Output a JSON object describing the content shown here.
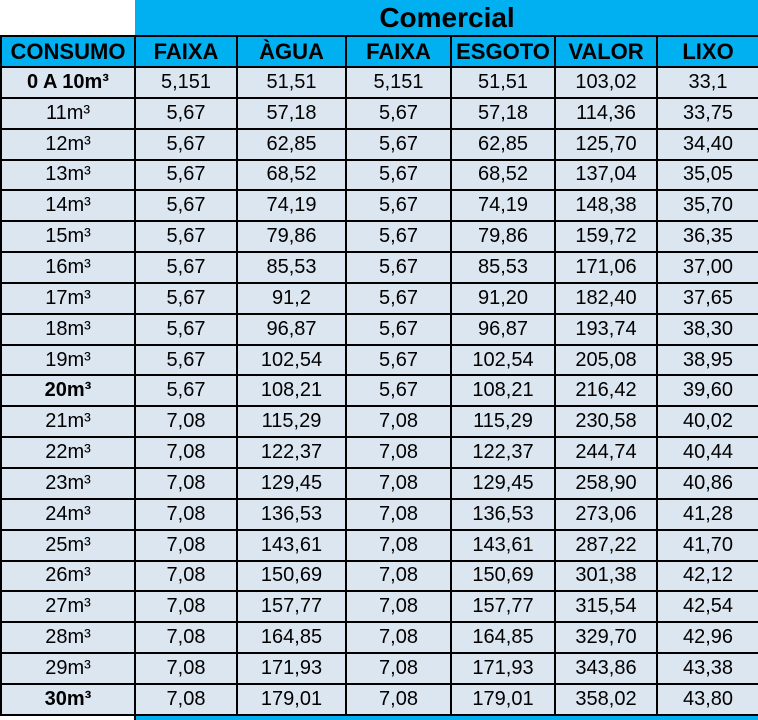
{
  "title": "Comercial",
  "columns": [
    "CONSUMO",
    "FAIXA",
    "ÀGUA",
    "FAIXA",
    "ESGOTO",
    "VALOR",
    "LIXO"
  ],
  "colors": {
    "section_header": "#00B0F0",
    "row_background": "#DCE6F1",
    "border": "#000000",
    "text": "#000000"
  },
  "rows": [
    {
      "consumo": "0 A 10m³",
      "bold": true,
      "faixa1": "5,151",
      "agua": "51,51",
      "faixa2": "5,151",
      "esgoto": "51,51",
      "valor": "103,02",
      "lixo": "33,1"
    },
    {
      "consumo": "11m³",
      "bold": false,
      "faixa1": "5,67",
      "agua": "57,18",
      "faixa2": "5,67",
      "esgoto": "57,18",
      "valor": "114,36",
      "lixo": "33,75"
    },
    {
      "consumo": "12m³",
      "bold": false,
      "faixa1": "5,67",
      "agua": "62,85",
      "faixa2": "5,67",
      "esgoto": "62,85",
      "valor": "125,70",
      "lixo": "34,40"
    },
    {
      "consumo": "13m³",
      "bold": false,
      "faixa1": "5,67",
      "agua": "68,52",
      "faixa2": "5,67",
      "esgoto": "68,52",
      "valor": "137,04",
      "lixo": "35,05"
    },
    {
      "consumo": "14m³",
      "bold": false,
      "faixa1": "5,67",
      "agua": "74,19",
      "faixa2": "5,67",
      "esgoto": "74,19",
      "valor": "148,38",
      "lixo": "35,70"
    },
    {
      "consumo": "15m³",
      "bold": false,
      "faixa1": "5,67",
      "agua": "79,86",
      "faixa2": "5,67",
      "esgoto": "79,86",
      "valor": "159,72",
      "lixo": "36,35"
    },
    {
      "consumo": "16m³",
      "bold": false,
      "faixa1": "5,67",
      "agua": "85,53",
      "faixa2": "5,67",
      "esgoto": "85,53",
      "valor": "171,06",
      "lixo": "37,00"
    },
    {
      "consumo": "17m³",
      "bold": false,
      "faixa1": "5,67",
      "agua": "91,2",
      "faixa2": "5,67",
      "esgoto": "91,20",
      "valor": "182,40",
      "lixo": "37,65"
    },
    {
      "consumo": "18m³",
      "bold": false,
      "faixa1": "5,67",
      "agua": "96,87",
      "faixa2": "5,67",
      "esgoto": "96,87",
      "valor": "193,74",
      "lixo": "38,30"
    },
    {
      "consumo": "19m³",
      "bold": false,
      "faixa1": "5,67",
      "agua": "102,54",
      "faixa2": "5,67",
      "esgoto": "102,54",
      "valor": "205,08",
      "lixo": "38,95"
    },
    {
      "consumo": "20m³",
      "bold": true,
      "faixa1": "5,67",
      "agua": "108,21",
      "faixa2": "5,67",
      "esgoto": "108,21",
      "valor": "216,42",
      "lixo": "39,60"
    },
    {
      "consumo": "21m³",
      "bold": false,
      "faixa1": "7,08",
      "agua": "115,29",
      "faixa2": "7,08",
      "esgoto": "115,29",
      "valor": "230,58",
      "lixo": "40,02"
    },
    {
      "consumo": "22m³",
      "bold": false,
      "faixa1": "7,08",
      "agua": "122,37",
      "faixa2": "7,08",
      "esgoto": "122,37",
      "valor": "244,74",
      "lixo": "40,44"
    },
    {
      "consumo": "23m³",
      "bold": false,
      "faixa1": "7,08",
      "agua": "129,45",
      "faixa2": "7,08",
      "esgoto": "129,45",
      "valor": "258,90",
      "lixo": "40,86"
    },
    {
      "consumo": "24m³",
      "bold": false,
      "faixa1": "7,08",
      "agua": "136,53",
      "faixa2": "7,08",
      "esgoto": "136,53",
      "valor": "273,06",
      "lixo": "41,28"
    },
    {
      "consumo": "25m³",
      "bold": false,
      "faixa1": "7,08",
      "agua": "143,61",
      "faixa2": "7,08",
      "esgoto": "143,61",
      "valor": "287,22",
      "lixo": "41,70"
    },
    {
      "consumo": "26m³",
      "bold": false,
      "faixa1": "7,08",
      "agua": "150,69",
      "faixa2": "7,08",
      "esgoto": "150,69",
      "valor": "301,38",
      "lixo": "42,12"
    },
    {
      "consumo": "27m³",
      "bold": false,
      "faixa1": "7,08",
      "agua": "157,77",
      "faixa2": "7,08",
      "esgoto": "157,77",
      "valor": "315,54",
      "lixo": "42,54"
    },
    {
      "consumo": "28m³",
      "bold": false,
      "faixa1": "7,08",
      "agua": "164,85",
      "faixa2": "7,08",
      "esgoto": "164,85",
      "valor": "329,70",
      "lixo": "42,96"
    },
    {
      "consumo": "29m³",
      "bold": false,
      "faixa1": "7,08",
      "agua": "171,93",
      "faixa2": "7,08",
      "esgoto": "171,93",
      "valor": "343,86",
      "lixo": "43,38"
    },
    {
      "consumo": "30m³",
      "bold": true,
      "faixa1": "7,08",
      "agua": "179,01",
      "faixa2": "7,08",
      "esgoto": "179,01",
      "valor": "358,02",
      "lixo": "43,80"
    }
  ]
}
